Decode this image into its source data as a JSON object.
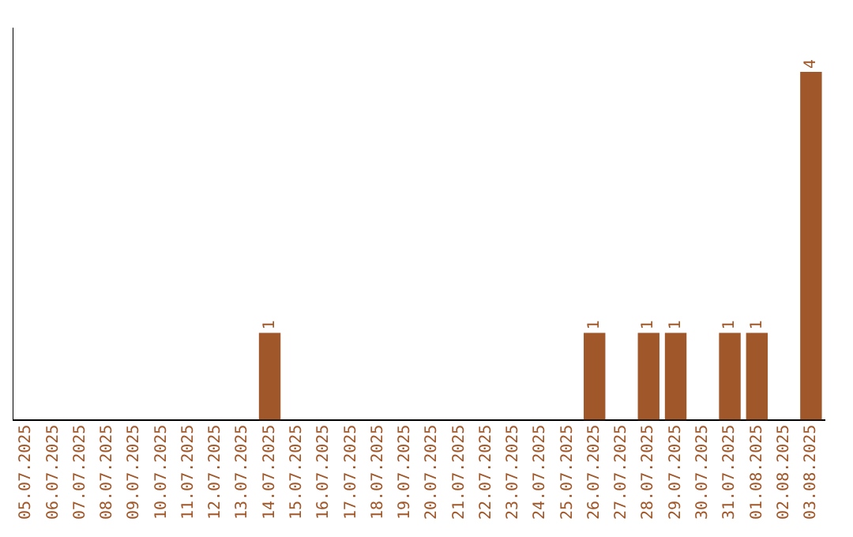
{
  "chart_data": {
    "type": "bar",
    "categories": [
      "05.07.2025",
      "06.07.2025",
      "07.07.2025",
      "08.07.2025",
      "09.07.2025",
      "10.07.2025",
      "11.07.2025",
      "12.07.2025",
      "13.07.2025",
      "14.07.2025",
      "15.07.2025",
      "16.07.2025",
      "17.07.2025",
      "18.07.2025",
      "19.07.2025",
      "20.07.2025",
      "21.07.2025",
      "22.07.2025",
      "23.07.2025",
      "24.07.2025",
      "25.07.2025",
      "26.07.2025",
      "27.07.2025",
      "28.07.2025",
      "29.07.2025",
      "30.07.2025",
      "31.07.2025",
      "01.08.2025",
      "02.08.2025",
      "03.08.2025"
    ],
    "values": [
      0,
      0,
      0,
      0,
      0,
      0,
      0,
      0,
      0,
      1,
      0,
      0,
      0,
      0,
      0,
      0,
      0,
      0,
      0,
      0,
      0,
      1,
      0,
      1,
      1,
      0,
      1,
      1,
      0,
      4
    ],
    "color": "#a0582a",
    "value_labels": [
      null,
      null,
      null,
      null,
      null,
      null,
      null,
      null,
      null,
      "1",
      null,
      null,
      null,
      null,
      null,
      null,
      null,
      null,
      null,
      null,
      null,
      "1",
      null,
      "1",
      "1",
      null,
      "1",
      "1",
      null,
      "4"
    ],
    "tick_labels": "x",
    "grid": false,
    "legend": false
  }
}
